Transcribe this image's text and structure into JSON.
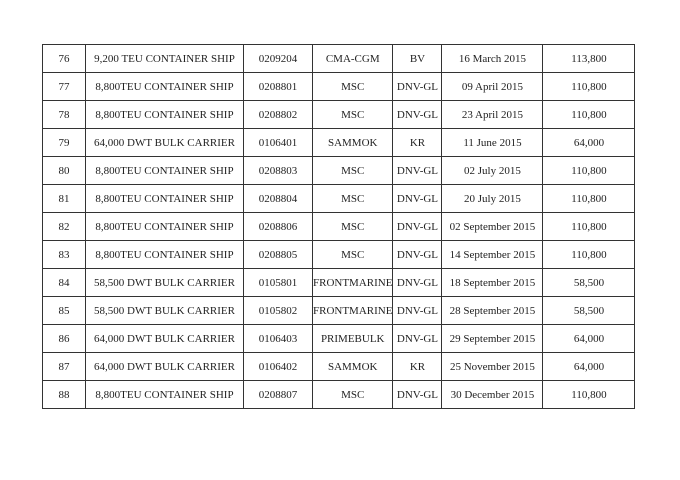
{
  "rows": [
    [
      "76",
      "9,200 TEU CONTAINER SHIP",
      "0209204",
      "CMA-CGM",
      "BV",
      "16 March 2015",
      "113,800"
    ],
    [
      "77",
      "8,800TEU CONTAINER SHIP",
      "0208801",
      "MSC",
      "DNV-GL",
      "09 April 2015",
      "110,800"
    ],
    [
      "78",
      "8,800TEU CONTAINER SHIP",
      "0208802",
      "MSC",
      "DNV-GL",
      "23 April 2015",
      "110,800"
    ],
    [
      "79",
      "64,000 DWT BULK CARRIER",
      "0106401",
      "SAMMOK",
      "KR",
      "11 June 2015",
      "64,000"
    ],
    [
      "80",
      "8,800TEU CONTAINER SHIP",
      "0208803",
      "MSC",
      "DNV-GL",
      "02 July 2015",
      "110,800"
    ],
    [
      "81",
      "8,800TEU CONTAINER SHIP",
      "0208804",
      "MSC",
      "DNV-GL",
      "20 July 2015",
      "110,800"
    ],
    [
      "82",
      "8,800TEU CONTAINER SHIP",
      "0208806",
      "MSC",
      "DNV-GL",
      "02 September 2015",
      "110,800"
    ],
    [
      "83",
      "8,800TEU CONTAINER SHIP",
      "0208805",
      "MSC",
      "DNV-GL",
      "14 September 2015",
      "110,800"
    ],
    [
      "84",
      "58,500 DWT BULK CARRIER",
      "0105801",
      "FRONTMARINE",
      "DNV-GL",
      "18 September 2015",
      "58,500"
    ],
    [
      "85",
      "58,500 DWT BULK CARRIER",
      "0105802",
      "FRONTMARINE",
      "DNV-GL",
      "28 September 2015",
      "58,500"
    ],
    [
      "86",
      "64,000 DWT BULK CARRIER",
      "0106403",
      "PRIMEBULK",
      "DNV-GL",
      "29 September 2015",
      "64,000"
    ],
    [
      "87",
      "64,000 DWT BULK CARRIER",
      "0106402",
      "SAMMOK",
      "KR",
      "25 November 2015",
      "64,000"
    ],
    [
      "88",
      "8,800TEU CONTAINER SHIP",
      "0208807",
      "MSC",
      "DNV-GL",
      "30 December 2015",
      "110,800"
    ]
  ]
}
